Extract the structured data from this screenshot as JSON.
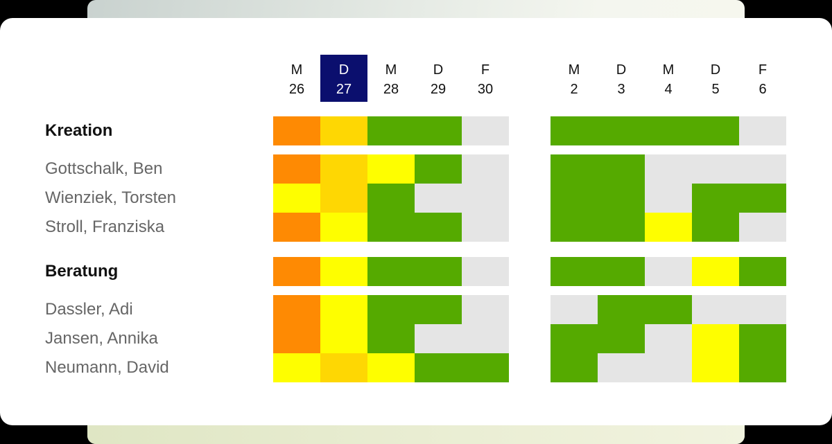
{
  "colors": {
    "O": "#fe8a03",
    "G": "#fed703",
    "Y": "#fefe00",
    "N": "#55aa00",
    "E": "#e5e5e5",
    "today_bg": "#0b0f6e"
  },
  "days": [
    {
      "letter": "M",
      "num": "26"
    },
    {
      "letter": "D",
      "num": "27",
      "today": true
    },
    {
      "letter": "M",
      "num": "28"
    },
    {
      "letter": "D",
      "num": "29"
    },
    {
      "letter": "F",
      "num": "30"
    },
    {
      "letter": "M",
      "num": "2"
    },
    {
      "letter": "D",
      "num": "3"
    },
    {
      "letter": "M",
      "num": "4"
    },
    {
      "letter": "D",
      "num": "5"
    },
    {
      "letter": "F",
      "num": "6"
    }
  ],
  "rows": [
    {
      "label": "Kreation",
      "type": "group",
      "cells": [
        "O",
        "G",
        "N",
        "N",
        "E",
        "N",
        "N",
        "N",
        "N",
        "E"
      ]
    },
    {
      "label": "Gottschalk, Ben",
      "type": "person",
      "cells": [
        "O",
        "G",
        "Y",
        "N",
        "E",
        "N",
        "N",
        "E",
        "E",
        "E"
      ]
    },
    {
      "label": "Wienziek, Torsten",
      "type": "person",
      "cells": [
        "Y",
        "G",
        "N",
        "E",
        "E",
        "N",
        "N",
        "E",
        "N",
        "N"
      ]
    },
    {
      "label": "Stroll, Franziska",
      "type": "person",
      "cells": [
        "O",
        "Y",
        "N",
        "N",
        "E",
        "N",
        "N",
        "Y",
        "N",
        "E"
      ]
    },
    {
      "label": "Beratung",
      "type": "group",
      "cells": [
        "O",
        "Y",
        "N",
        "N",
        "E",
        "N",
        "N",
        "E",
        "Y",
        "N"
      ]
    },
    {
      "label": "Dassler, Adi",
      "type": "person",
      "cells": [
        "O",
        "Y",
        "N",
        "N",
        "E",
        "E",
        "N",
        "N",
        "E",
        "E"
      ]
    },
    {
      "label": "Jansen, Annika",
      "type": "person",
      "cells": [
        "O",
        "Y",
        "N",
        "E",
        "E",
        "N",
        "N",
        "E",
        "Y",
        "N"
      ]
    },
    {
      "label": "Neumann, David",
      "type": "person",
      "cells": [
        "Y",
        "G",
        "Y",
        "N",
        "N",
        "N",
        "E",
        "E",
        "Y",
        "N"
      ]
    }
  ]
}
